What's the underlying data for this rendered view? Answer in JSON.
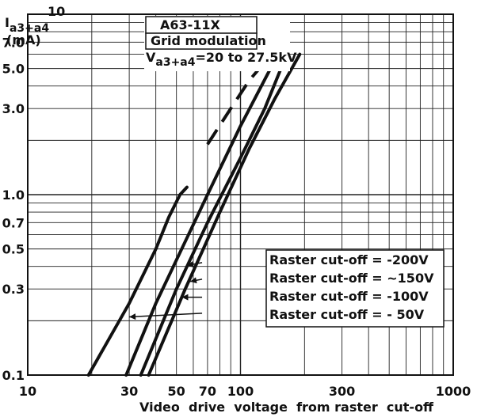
{
  "chart_data": {
    "type": "line",
    "x_scale": "log",
    "y_scale": "log",
    "xlim": [
      10,
      1000
    ],
    "ylim": [
      0.1,
      10
    ],
    "grid": true,
    "xlabel": "Video  drive  voltage  from raster  cut-off",
    "ylabel_line1": "I",
    "ylabel_sub": "a3+a4",
    "ylabel_line2": "(mA)",
    "x_ticks": [
      {
        "value": 10,
        "label": "10"
      },
      {
        "value": 30,
        "label": "30"
      },
      {
        "value": 50,
        "label": "50"
      },
      {
        "value": 70,
        "label": "70"
      },
      {
        "value": 100,
        "label": "100"
      },
      {
        "value": 300,
        "label": "300"
      },
      {
        "value": 1000,
        "label": "1000"
      }
    ],
    "y_ticks": [
      {
        "value": 0.1,
        "label": "0.1"
      },
      {
        "value": 0.3,
        "label": "0.3"
      },
      {
        "value": 0.5,
        "label": "0.5"
      },
      {
        "value": 0.7,
        "label": "0.7"
      },
      {
        "value": 1.0,
        "label": "1.0"
      },
      {
        "value": 3.0,
        "label": "3.0"
      },
      {
        "value": 5.0,
        "label": "5.0"
      },
      {
        "value": 7.0,
        "label": "7.0"
      },
      {
        "value": 10,
        "label": "10"
      }
    ],
    "legend_box": {
      "tube": "A63-11X",
      "mode": "Grid modulation",
      "voltage_prefix": "V",
      "voltage_sub": "a3+a4",
      "voltage_suffix": "=20 to 27.5kV"
    },
    "series": [
      {
        "name": "Raster cut-off = -50V",
        "label_text": "Raster cut-off =  - 50V",
        "points": [
          [
            19.3,
            0.1
          ],
          [
            30,
            0.25
          ],
          [
            40,
            0.5
          ],
          [
            46,
            0.75
          ],
          [
            52,
            1.0
          ],
          [
            56,
            1.1
          ]
        ],
        "dashed_points": [
          [
            70,
            1.9
          ],
          [
            90,
            3.0
          ],
          [
            110,
            4.3
          ],
          [
            140,
            6.0
          ]
        ]
      },
      {
        "name": "Raster cut-off = -100V",
        "label_text": "Raster cut-off = -100V",
        "points": [
          [
            29,
            0.1
          ],
          [
            40,
            0.25
          ],
          [
            55,
            0.55
          ],
          [
            70,
            1.0
          ],
          [
            100,
            2.4
          ],
          [
            150,
            6.0
          ]
        ]
      },
      {
        "name": "Raster cut-off = -150V",
        "label_text": "Raster cut-off = ~150V",
        "points": [
          [
            34,
            0.1
          ],
          [
            50,
            0.3
          ],
          [
            70,
            0.7
          ],
          [
            100,
            1.6
          ],
          [
            130,
            3.0
          ],
          [
            165,
            6.0
          ]
        ]
      },
      {
        "name": "Raster cut-off = -200V",
        "label_text": "Raster cut-off = -200V",
        "points": [
          [
            37,
            0.1
          ],
          [
            55,
            0.3
          ],
          [
            80,
            0.8
          ],
          [
            110,
            1.8
          ],
          [
            145,
            3.4
          ],
          [
            190,
            6.0
          ]
        ]
      }
    ],
    "pointers": [
      {
        "series": 3,
        "from": [
          66,
          0.42
        ],
        "to": [
          56,
          0.405
        ]
      },
      {
        "series": 2,
        "from": [
          66,
          0.34
        ],
        "to": [
          58,
          0.33
        ]
      },
      {
        "series": 1,
        "from": [
          66,
          0.27
        ],
        "to": [
          53,
          0.27
        ]
      },
      {
        "series": 0,
        "from": [
          66,
          0.22
        ],
        "to": [
          30,
          0.21
        ]
      }
    ]
  }
}
